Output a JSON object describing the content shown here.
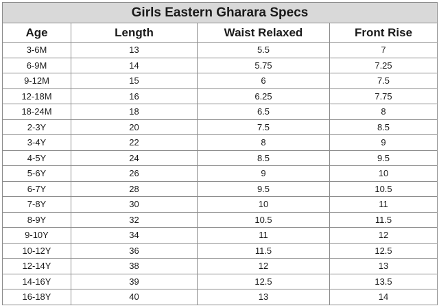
{
  "table": {
    "title": "Girls Eastern Gharara Specs",
    "columns": [
      "Age",
      "Length",
      "Waist Relaxed",
      "Front Rise"
    ],
    "rows": [
      [
        "3-6M",
        "13",
        "5.5",
        "7"
      ],
      [
        "6-9M",
        "14",
        "5.75",
        "7.25"
      ],
      [
        "9-12M",
        "15",
        "6",
        "7.5"
      ],
      [
        "12-18M",
        "16",
        "6.25",
        "7.75"
      ],
      [
        "18-24M",
        "18",
        "6.5",
        "8"
      ],
      [
        "2-3Y",
        "20",
        "7.5",
        "8.5"
      ],
      [
        "3-4Y",
        "22",
        "8",
        "9"
      ],
      [
        "4-5Y",
        "24",
        "8.5",
        "9.5"
      ],
      [
        "5-6Y",
        "26",
        "9",
        "10"
      ],
      [
        "6-7Y",
        "28",
        "9.5",
        "10.5"
      ],
      [
        "7-8Y",
        "30",
        "10",
        "11"
      ],
      [
        "8-9Y",
        "32",
        "10.5",
        "11.5"
      ],
      [
        "9-10Y",
        "34",
        "11",
        "12"
      ],
      [
        "10-12Y",
        "36",
        "11.5",
        "12.5"
      ],
      [
        "12-14Y",
        "38",
        "12",
        "13"
      ],
      [
        "14-16Y",
        "39",
        "12.5",
        "13.5"
      ],
      [
        "16-18Y",
        "40",
        "13",
        "14"
      ]
    ]
  },
  "colors": {
    "title_background": "#d9d9d9",
    "grid_line": "#8c8c8c",
    "text": "#1a1a1a"
  }
}
